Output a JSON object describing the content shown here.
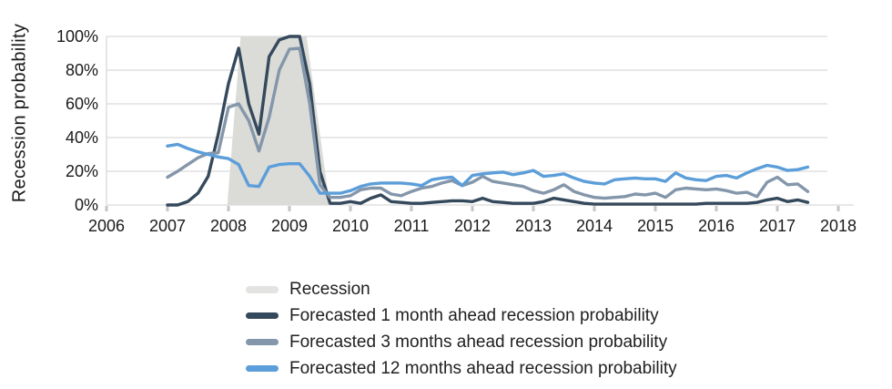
{
  "chart_data": {
    "type": "line",
    "title": "",
    "ylabel": "Recession probability",
    "xlabel": "",
    "x_tick_labels": [
      "2006",
      "2007",
      "2008",
      "2009",
      "2010",
      "2011",
      "2012",
      "2013",
      "2014",
      "2015",
      "2016",
      "2017",
      "2018"
    ],
    "x_tick_years": [
      2006,
      2007,
      2008,
      2009,
      2010,
      2011,
      2012,
      2013,
      2014,
      2015,
      2016,
      2017,
      2018
    ],
    "y_tick_labels": [
      "0%",
      "20%",
      "40%",
      "60%",
      "80%",
      "100%"
    ],
    "y_tick_values": [
      0,
      20,
      40,
      60,
      80,
      100
    ],
    "xlim": [
      2006,
      2018.3
    ],
    "ylim": [
      0,
      100
    ],
    "grid": "horizontal-only",
    "legend_position": "bottom",
    "style": {
      "gridline_color": "#D9D9D9",
      "axis_line_color": "#D9D9D9",
      "tick_mark_color": "#C6C6C6",
      "text_color": "#1A1A1A"
    },
    "recession_band": {
      "label": "Recession",
      "color": "#DBDBD8",
      "bottom_x": [
        2007.98,
        2009.66
      ],
      "top_x": [
        2008.2,
        2009.28
      ],
      "top_value": 100,
      "bottom_value": 0
    },
    "x": [
      2007,
      2007.167,
      2007.333,
      2007.5,
      2007.667,
      2007.833,
      2008,
      2008.167,
      2008.333,
      2008.5,
      2008.667,
      2008.833,
      2009,
      2009.167,
      2009.333,
      2009.5,
      2009.667,
      2009.833,
      2010,
      2010.167,
      2010.333,
      2010.5,
      2010.667,
      2010.833,
      2011,
      2011.167,
      2011.333,
      2011.5,
      2011.667,
      2011.833,
      2012,
      2012.167,
      2012.333,
      2012.5,
      2012.667,
      2012.833,
      2013,
      2013.167,
      2013.333,
      2013.5,
      2013.667,
      2013.833,
      2014,
      2014.167,
      2014.333,
      2014.5,
      2014.667,
      2014.833,
      2015,
      2015.167,
      2015.333,
      2015.5,
      2015.667,
      2015.833,
      2016,
      2016.167,
      2016.333,
      2016.5,
      2016.667,
      2016.833,
      2017,
      2017.167,
      2017.333,
      2017.5
    ],
    "series": [
      {
        "name": "Forecasted 1 month ahead recession probability",
        "color": "#35495C",
        "values": [
          0,
          0,
          2,
          7,
          17,
          42,
          72,
          93,
          60,
          42,
          88,
          98,
          100,
          100,
          72,
          20,
          1,
          1,
          2,
          1,
          4,
          6,
          2,
          1.5,
          1,
          1,
          1.5,
          2,
          2.5,
          2.5,
          2,
          4,
          2,
          1.5,
          1,
          1,
          1,
          2,
          4,
          3,
          2,
          1,
          0.5,
          0.5,
          0.5,
          0.5,
          0.5,
          0.5,
          0.5,
          0.5,
          0.5,
          0.5,
          0.5,
          1,
          1,
          1,
          1,
          1,
          1.5,
          3,
          4,
          2,
          3,
          1.5
        ]
      },
      {
        "name": "Forecasted 3 months ahead recession probability",
        "color": "#8496AA",
        "values": [
          16.5,
          20,
          24,
          28,
          30.5,
          31,
          58,
          60,
          50,
          32,
          52,
          80,
          92.5,
          93,
          60,
          12,
          4.5,
          4.5,
          5.5,
          9,
          10,
          10,
          6.5,
          5.5,
          8,
          10,
          11,
          13,
          14.5,
          11.5,
          13.5,
          17,
          14,
          13,
          12,
          11,
          8.5,
          7,
          9,
          12,
          8,
          6,
          4.5,
          4,
          4.5,
          5,
          6.5,
          6,
          7,
          4.5,
          9,
          10,
          9.5,
          9,
          9.5,
          8.5,
          7,
          7.5,
          5,
          13.5,
          16.5,
          12,
          12.5,
          8
        ]
      },
      {
        "name": "Forecasted 12 months ahead recession probability",
        "color": "#5C9ED9",
        "values": [
          35,
          36,
          33.5,
          31.5,
          30,
          28.5,
          27.5,
          24,
          11.5,
          11,
          22.5,
          24,
          24.5,
          24.5,
          17,
          7,
          7,
          7,
          8.5,
          11,
          12.5,
          13,
          13,
          13,
          12.5,
          11.5,
          15,
          16,
          16.5,
          11.5,
          17.5,
          18.5,
          19,
          19.5,
          18,
          19,
          20.5,
          17,
          17.5,
          18.5,
          16,
          14,
          13,
          12.5,
          15,
          15.5,
          16,
          15.5,
          15.5,
          14,
          19,
          16,
          15,
          14.5,
          17,
          17.5,
          16,
          19,
          21.5,
          23.5,
          22.5,
          20.5,
          21,
          22.5
        ]
      }
    ],
    "legend": {
      "entries": [
        {
          "label": "Recession",
          "color": "#E3E3E1",
          "kind": "band"
        },
        {
          "label": "Forecasted 1 month ahead recession probability",
          "color": "#35495C",
          "kind": "line"
        },
        {
          "label": "Forecasted 3 months ahead recession probability",
          "color": "#8496AA",
          "kind": "line"
        },
        {
          "label": "Forecasted 12 months ahead recession probability",
          "color": "#5C9ED9",
          "kind": "line"
        }
      ]
    }
  }
}
